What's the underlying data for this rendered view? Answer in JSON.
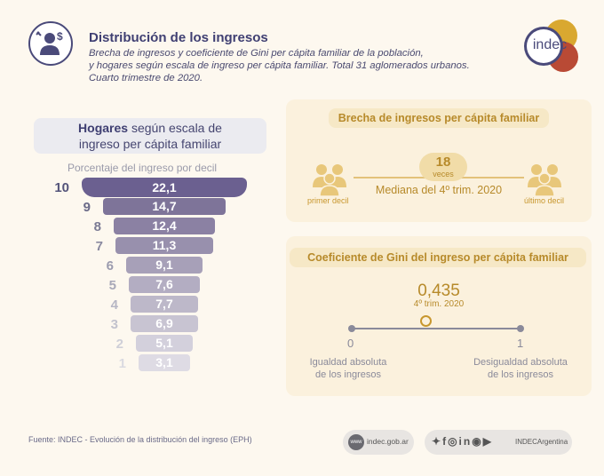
{
  "header": {
    "title": "Distribución de los ingresos",
    "subtitle_lines": [
      "Brecha de ingresos y coeficiente de Gini per cápita familiar de la población,",
      "y hogares según escala de ingreso per cápita familiar. Total 31 aglomerados urbanos.",
      "Cuarto trimestre de 2020."
    ],
    "logo_text": "indec"
  },
  "deciles_panel": {
    "title_bold": "Hogares",
    "title_rest_1": " según escala de",
    "title_line2": "ingreso per cápita familiar",
    "axis_label": "Porcentaje del ingreso por decil",
    "rows": [
      {
        "decil": "10",
        "value": "22,1"
      },
      {
        "decil": "9",
        "value": "14,7"
      },
      {
        "decil": "8",
        "value": "12,4"
      },
      {
        "decil": "7",
        "value": "11,3"
      },
      {
        "decil": "6",
        "value": "9,1"
      },
      {
        "decil": "5",
        "value": "7,6"
      },
      {
        "decil": "4",
        "value": "7,7"
      },
      {
        "decil": "3",
        "value": "6,9"
      },
      {
        "decil": "2",
        "value": "5,1"
      },
      {
        "decil": "1",
        "value": "3,1"
      }
    ]
  },
  "brecha": {
    "title": "Brecha de ingresos per cápita familiar",
    "value": "18",
    "unit": "veces",
    "caption": "Mediana del 4º trim. 2020",
    "left_label": "primer decil",
    "right_label": "último decil"
  },
  "gini": {
    "title": "Coeficiente de Gini del ingreso per cápita familiar",
    "value": "0,435",
    "period": "4º trim. 2020",
    "min_label": "0",
    "max_label": "1",
    "min_caption_1": "Igualdad absoluta",
    "min_caption_2": "de los ingresos",
    "max_caption_1": "Desigualdad absoluta",
    "max_caption_2": "de los ingresos",
    "position": 0.435
  },
  "footer": {
    "source": "Fuente: INDEC - Evolución de la distribución del ingreso (EPH)",
    "web": "indec.gob.ar",
    "www": "www",
    "handle": "INDECArgentina"
  }
}
